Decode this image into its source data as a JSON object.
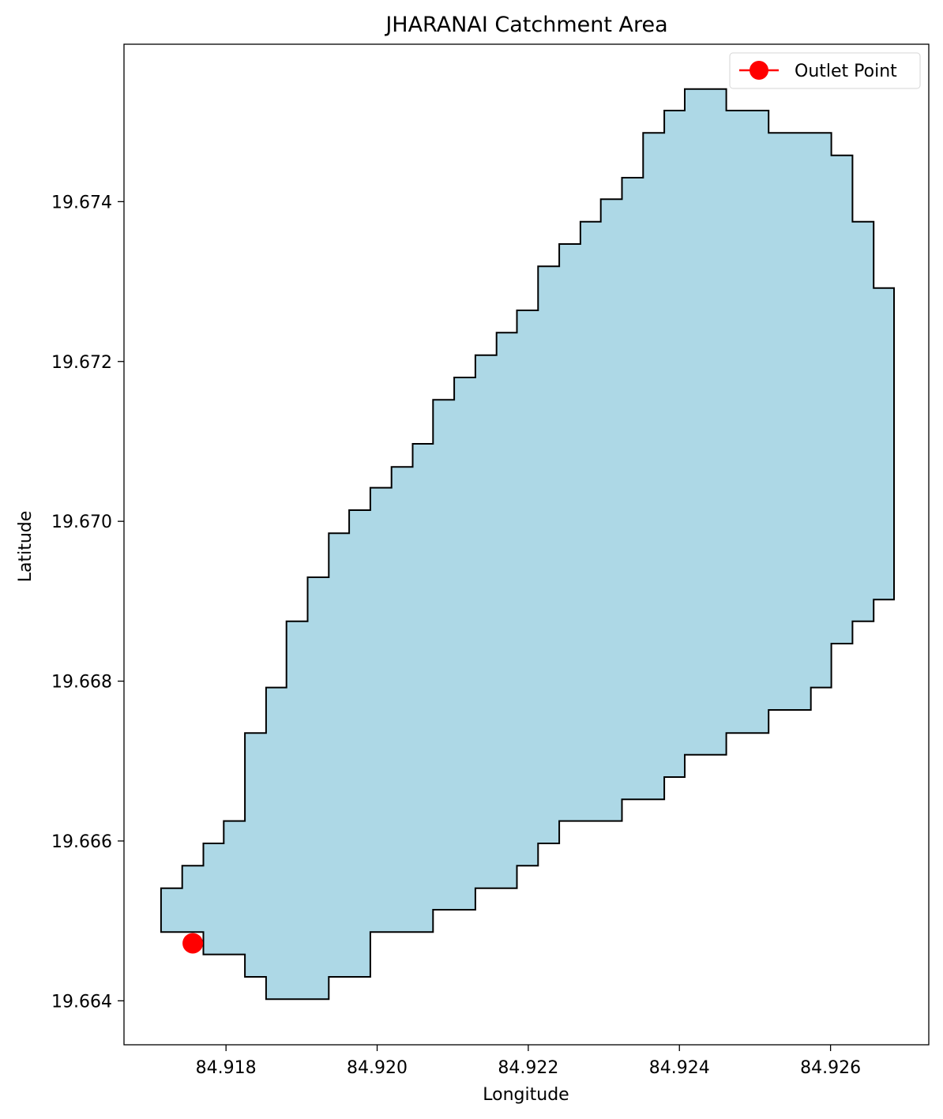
{
  "chart_data": {
    "type": "area",
    "title": "JHARANAI Catchment Area",
    "xlabel": "Longitude",
    "ylabel": "Latitude",
    "xlim": [
      84.91665,
      84.9273
    ],
    "ylim": [
      19.66345,
      19.67597
    ],
    "xticks": [
      "84.918",
      "84.920",
      "84.922",
      "84.924",
      "84.926"
    ],
    "xtick_values": [
      84.918,
      84.92,
      84.922,
      84.924,
      84.926
    ],
    "yticks": [
      "19.664",
      "19.666",
      "19.668",
      "19.670",
      "19.672",
      "19.674"
    ],
    "ytick_values": [
      19.664,
      19.666,
      19.668,
      19.67,
      19.672,
      19.674
    ],
    "grid": false,
    "legend_position": "top-right",
    "catchment": {
      "fill_color": "#add8e6",
      "edge_color": "#000000",
      "boundary": [
        [
          84.91714,
          19.66541
        ],
        [
          84.91742,
          19.66541
        ],
        [
          84.91742,
          19.66569
        ],
        [
          84.9177,
          19.66569
        ],
        [
          84.9177,
          19.66597
        ],
        [
          84.91797,
          19.66597
        ],
        [
          84.91797,
          19.66625
        ],
        [
          84.91825,
          19.66625
        ],
        [
          84.91825,
          19.66735
        ],
        [
          84.91853,
          19.66735
        ],
        [
          84.91853,
          19.66792
        ],
        [
          84.9188,
          19.66792
        ],
        [
          84.9188,
          19.66875
        ],
        [
          84.91908,
          19.66875
        ],
        [
          84.91908,
          19.6693
        ],
        [
          84.91936,
          19.6693
        ],
        [
          84.91936,
          19.66985
        ],
        [
          84.91963,
          19.66985
        ],
        [
          84.91963,
          19.67014
        ],
        [
          84.91991,
          19.67014
        ],
        [
          84.91991,
          19.67042
        ],
        [
          84.92019,
          19.67042
        ],
        [
          84.92019,
          19.67068
        ],
        [
          84.92047,
          19.67068
        ],
        [
          84.92047,
          19.67097
        ],
        [
          84.92074,
          19.67097
        ],
        [
          84.92074,
          19.67152
        ],
        [
          84.92102,
          19.67152
        ],
        [
          84.92102,
          19.6718
        ],
        [
          84.9213,
          19.6718
        ],
        [
          84.9213,
          19.67208
        ],
        [
          84.92158,
          19.67208
        ],
        [
          84.92158,
          19.67236
        ],
        [
          84.92185,
          19.67236
        ],
        [
          84.92185,
          19.67264
        ],
        [
          84.92213,
          19.67264
        ],
        [
          84.92213,
          19.67319
        ],
        [
          84.92241,
          19.67319
        ],
        [
          84.92241,
          19.67347
        ],
        [
          84.92269,
          19.67347
        ],
        [
          84.92269,
          19.67375
        ],
        [
          84.92296,
          19.67375
        ],
        [
          84.92296,
          19.67403
        ],
        [
          84.92324,
          19.67403
        ],
        [
          84.92324,
          19.6743
        ],
        [
          84.92352,
          19.6743
        ],
        [
          84.92352,
          19.67486
        ],
        [
          84.9238,
          19.67486
        ],
        [
          84.9238,
          19.67514
        ],
        [
          84.92407,
          19.67514
        ],
        [
          84.92407,
          19.67541
        ],
        [
          84.92462,
          19.67541
        ],
        [
          84.92462,
          19.67514
        ],
        [
          84.92518,
          19.67514
        ],
        [
          84.92518,
          19.67486
        ],
        [
          84.92601,
          19.67486
        ],
        [
          84.92601,
          19.67458
        ],
        [
          84.92629,
          19.67458
        ],
        [
          84.92629,
          19.67375
        ],
        [
          84.92657,
          19.67375
        ],
        [
          84.92657,
          19.67292
        ],
        [
          84.92684,
          19.67292
        ],
        [
          84.92684,
          19.66902
        ],
        [
          84.92657,
          19.66902
        ],
        [
          84.92657,
          19.66875
        ],
        [
          84.92629,
          19.66875
        ],
        [
          84.92629,
          19.66847
        ],
        [
          84.92601,
          19.66847
        ],
        [
          84.92601,
          19.66792
        ],
        [
          84.92574,
          19.66792
        ],
        [
          84.92574,
          19.66764
        ],
        [
          84.92518,
          19.66764
        ],
        [
          84.92518,
          19.66735
        ],
        [
          84.92462,
          19.66735
        ],
        [
          84.92462,
          19.66708
        ],
        [
          84.92407,
          19.66708
        ],
        [
          84.92407,
          19.6668
        ],
        [
          84.9238,
          19.6668
        ],
        [
          84.9238,
          19.66652
        ],
        [
          84.92324,
          19.66652
        ],
        [
          84.92324,
          19.66625
        ],
        [
          84.92241,
          19.66625
        ],
        [
          84.92241,
          19.66597
        ],
        [
          84.92213,
          19.66597
        ],
        [
          84.92213,
          19.66569
        ],
        [
          84.92185,
          19.66569
        ],
        [
          84.92185,
          19.66541
        ],
        [
          84.9213,
          19.66541
        ],
        [
          84.9213,
          19.66514
        ],
        [
          84.92074,
          19.66514
        ],
        [
          84.92074,
          19.66486
        ],
        [
          84.91991,
          19.66486
        ],
        [
          84.91991,
          19.6643
        ],
        [
          84.91936,
          19.6643
        ],
        [
          84.91936,
          19.66402
        ],
        [
          84.91853,
          19.66402
        ],
        [
          84.91853,
          19.6643
        ],
        [
          84.91825,
          19.6643
        ],
        [
          84.91825,
          19.66458
        ],
        [
          84.9177,
          19.66458
        ],
        [
          84.9177,
          19.66486
        ],
        [
          84.91714,
          19.66486
        ]
      ]
    },
    "outlet_point": {
      "x": 84.91756,
      "y": 19.66472,
      "color": "#ff0000"
    },
    "legend": {
      "label": "Outlet Point"
    }
  }
}
